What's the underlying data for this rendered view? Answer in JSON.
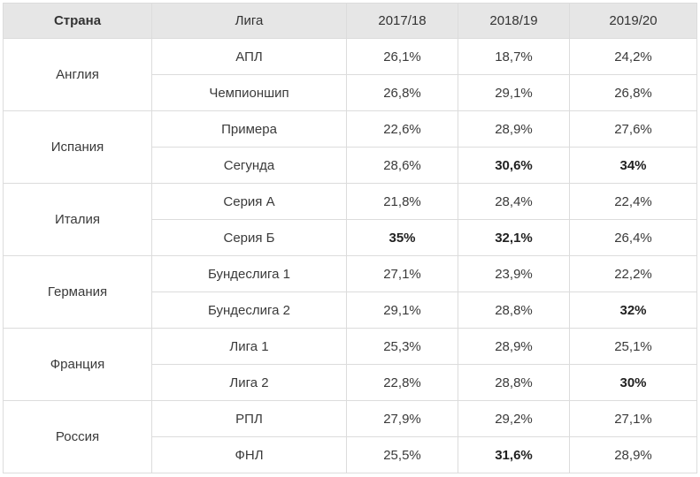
{
  "headers": {
    "country": "Страна",
    "league": "Лига",
    "seasons": [
      "2017/18",
      "2018/19",
      "2019/20"
    ]
  },
  "countries": [
    {
      "name": "Англия",
      "leagues": [
        {
          "name": "АПЛ",
          "values": [
            "26,1%",
            "18,7%",
            "24,2%"
          ],
          "bold": [
            false,
            false,
            false
          ]
        },
        {
          "name": "Чемпионшип",
          "values": [
            "26,8%",
            "29,1%",
            "26,8%"
          ],
          "bold": [
            false,
            false,
            false
          ]
        }
      ]
    },
    {
      "name": "Испания",
      "leagues": [
        {
          "name": "Примера",
          "values": [
            "22,6%",
            "28,9%",
            "27,6%"
          ],
          "bold": [
            false,
            false,
            false
          ]
        },
        {
          "name": "Сегунда",
          "values": [
            "28,6%",
            "30,6%",
            "34%"
          ],
          "bold": [
            false,
            true,
            true
          ]
        }
      ]
    },
    {
      "name": "Италия",
      "leagues": [
        {
          "name": "Серия А",
          "values": [
            "21,8%",
            "28,4%",
            "22,4%"
          ],
          "bold": [
            false,
            false,
            false
          ]
        },
        {
          "name": "Серия Б",
          "values": [
            "35%",
            "32,1%",
            "26,4%"
          ],
          "bold": [
            true,
            true,
            false
          ]
        }
      ]
    },
    {
      "name": "Германия",
      "leagues": [
        {
          "name": "Бундеслига 1",
          "values": [
            "27,1%",
            "23,9%",
            "22,2%"
          ],
          "bold": [
            false,
            false,
            false
          ]
        },
        {
          "name": "Бундеслига 2",
          "values": [
            "29,1%",
            "28,8%",
            "32%"
          ],
          "bold": [
            false,
            false,
            true
          ]
        }
      ]
    },
    {
      "name": "Франция",
      "leagues": [
        {
          "name": "Лига 1",
          "values": [
            "25,3%",
            "28,9%",
            "25,1%"
          ],
          "bold": [
            false,
            false,
            false
          ]
        },
        {
          "name": "Лига 2",
          "values": [
            "22,8%",
            "28,8%",
            "30%"
          ],
          "bold": [
            false,
            false,
            true
          ]
        }
      ]
    },
    {
      "name": "Россия",
      "leagues": [
        {
          "name": "РПЛ",
          "values": [
            "27,9%",
            "29,2%",
            "27,1%"
          ],
          "bold": [
            false,
            false,
            false
          ]
        },
        {
          "name": "ФНЛ",
          "values": [
            "25,5%",
            "31,6%",
            "28,9%"
          ],
          "bold": [
            false,
            true,
            false
          ]
        }
      ]
    }
  ]
}
